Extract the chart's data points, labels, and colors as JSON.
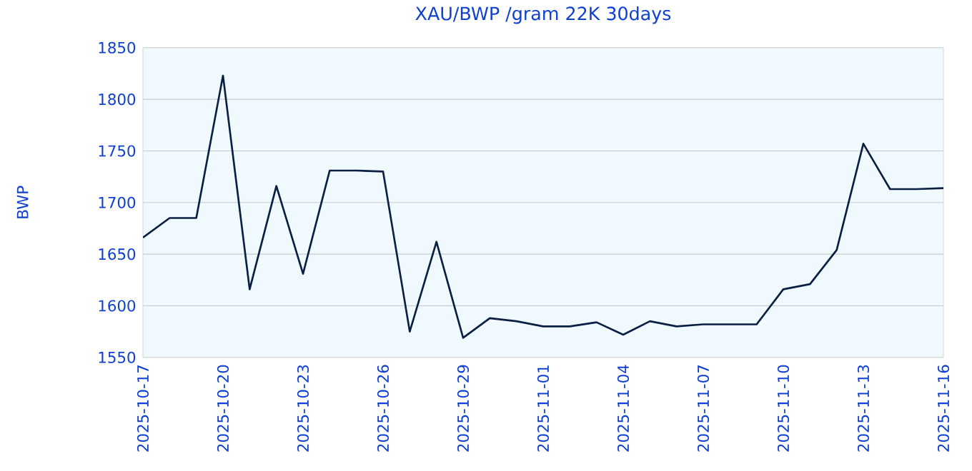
{
  "chart_data": {
    "type": "line",
    "title": "XAU/BWP /gram 22K 30days",
    "ylabel": "BWP",
    "x": [
      "2025-10-17",
      "2025-10-18",
      "2025-10-19",
      "2025-10-20",
      "2025-10-21",
      "2025-10-22",
      "2025-10-23",
      "2025-10-24",
      "2025-10-25",
      "2025-10-26",
      "2025-10-27",
      "2025-10-28",
      "2025-10-29",
      "2025-10-30",
      "2025-10-31",
      "2025-11-01",
      "2025-11-02",
      "2025-11-03",
      "2025-11-04",
      "2025-11-05",
      "2025-11-06",
      "2025-11-07",
      "2025-11-08",
      "2025-11-09",
      "2025-11-10",
      "2025-11-11",
      "2025-11-12",
      "2025-11-13",
      "2025-11-14",
      "2025-11-15",
      "2025-11-16"
    ],
    "series": [
      {
        "color": "#0a1f44",
        "values": [
          1666,
          1685,
          1685,
          1823,
          1616,
          1716,
          1631,
          1731,
          1731,
          1730,
          1575,
          1662,
          1569,
          1588,
          1585,
          1580,
          1580,
          1584,
          1572,
          1585,
          1580,
          1582,
          1582,
          1582,
          1616,
          1621,
          1654,
          1757,
          1713,
          1713,
          1714
        ]
      }
    ],
    "xlim": [
      "2025-10-17",
      "2025-11-16"
    ],
    "xticks": [
      "2025-10-17",
      "2025-10-20",
      "2025-10-23",
      "2025-10-26",
      "2025-10-29",
      "2025-11-01",
      "2025-11-04",
      "2025-11-07",
      "2025-11-10",
      "2025-11-13",
      "2025-11-16"
    ],
    "ylim": [
      1550,
      1850
    ],
    "yticks": [
      1550,
      1600,
      1650,
      1700,
      1750,
      1800,
      1850
    ],
    "grid": "y",
    "marker": "none",
    "line_style": "solid"
  }
}
